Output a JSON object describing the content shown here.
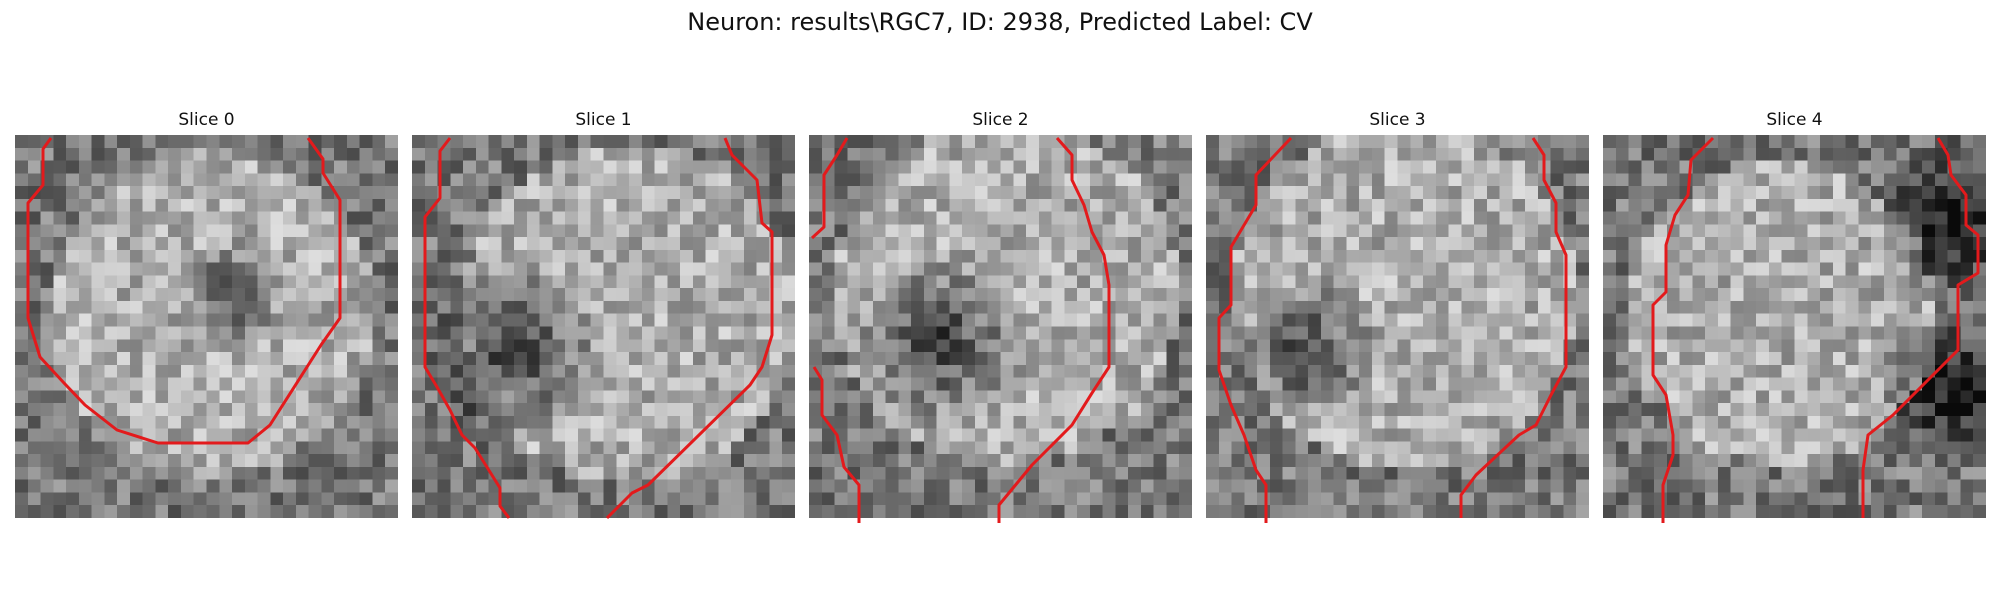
{
  "figure": {
    "title": "Neuron: results\\RGC7, ID: 2938, Predicted Label: CV"
  },
  "contour_color": "#e31a1c",
  "slices": [
    {
      "label": "Slice 0",
      "seed": 11,
      "center": [
        0.5,
        0.45
      ],
      "radius": 0.42,
      "dark": [
        [
          0.55,
          0.4,
          0.05
        ]
      ]
    },
    {
      "label": "Slice 1",
      "seed": 23,
      "center": [
        0.55,
        0.45
      ],
      "radius": 0.44,
      "dark": [
        [
          0.25,
          0.55,
          0.15
        ]
      ]
    },
    {
      "label": "Slice 2",
      "seed": 37,
      "center": [
        0.5,
        0.4
      ],
      "radius": 0.45,
      "dark": [
        [
          0.32,
          0.52,
          0.15
        ]
      ]
    },
    {
      "label": "Slice 3",
      "seed": 51,
      "center": [
        0.5,
        0.4
      ],
      "radius": 0.45,
      "dark": [
        [
          0.25,
          0.55,
          0.1
        ]
      ]
    },
    {
      "label": "Slice 4",
      "seed": 67,
      "center": [
        0.45,
        0.45
      ],
      "radius": 0.4,
      "dark": [
        [
          0.9,
          0.2,
          0.12
        ],
        [
          0.9,
          0.65,
          0.12
        ]
      ]
    }
  ]
}
